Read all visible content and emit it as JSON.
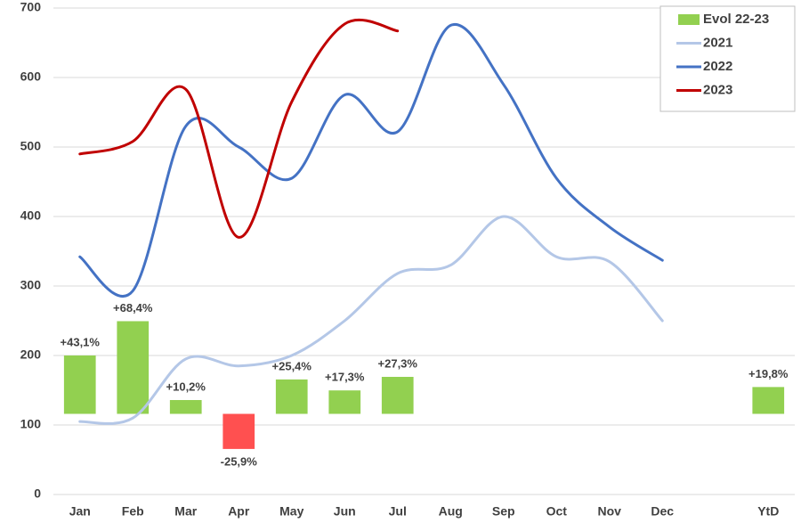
{
  "chart_data": {
    "type": "bar_line",
    "categories": [
      "Jan",
      "Feb",
      "Mar",
      "Apr",
      "May",
      "Jun",
      "Jul",
      "Aug",
      "Sep",
      "Oct",
      "Nov",
      "Dec",
      null,
      "YtD"
    ],
    "ylim": [
      0,
      700
    ],
    "yticks": [
      0,
      100,
      200,
      300,
      400,
      500,
      600,
      700
    ],
    "grid": true,
    "y2lim": [
      -59.5,
      299.5
    ],
    "legend": "top-right",
    "series": [
      {
        "name": "Evol 22-23",
        "type": "bar",
        "axis": "y2",
        "color": "#92d050",
        "negative_color": "#ff5050",
        "values": [
          43.1,
          68.4,
          10.2,
          -25.9,
          25.4,
          17.3,
          27.3,
          null,
          null,
          null,
          null,
          null,
          null,
          19.8
        ],
        "value_labels": [
          "+43,1%",
          "+68,4%",
          "+10,2%",
          "-25,9%",
          "+25,4%",
          "+17,3%",
          "+27,3%",
          null,
          null,
          null,
          null,
          null,
          null,
          "+19,8%"
        ]
      },
      {
        "name": "2021",
        "type": "line",
        "color": "#b4c7e7",
        "values": [
          105,
          110,
          195,
          185,
          200,
          250,
          318,
          330,
          400,
          342,
          335,
          250,
          null,
          null
        ]
      },
      {
        "name": "2022",
        "type": "line",
        "color": "#4472c4",
        "values": [
          342,
          293,
          530,
          500,
          455,
          575,
          522,
          675,
          590,
          455,
          385,
          337,
          null,
          null
        ]
      },
      {
        "name": "2023",
        "type": "line",
        "color": "#c00000",
        "values": [
          490,
          508,
          583,
          370,
          565,
          677,
          667,
          null,
          null,
          null,
          null,
          null,
          null,
          null
        ]
      }
    ]
  }
}
